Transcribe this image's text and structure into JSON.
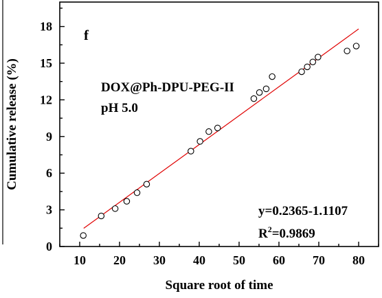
{
  "chart_data": {
    "type": "scatter",
    "panel_label": "f",
    "xlabel": "Square root of time",
    "ylabel": "Cumulative release (%)",
    "xlim": [
      5,
      85
    ],
    "ylim": [
      0,
      20
    ],
    "xticks": [
      10,
      20,
      30,
      40,
      50,
      60,
      70,
      80
    ],
    "yticks": [
      0,
      3,
      6,
      9,
      12,
      15,
      18
    ],
    "sample_label": "DOX@Ph-DPU-PEG-II",
    "condition_label": "pH 5.0",
    "equation": "y=0.2365-1.1107",
    "r_squared_prefix": "R",
    "r_squared_sup": "2",
    "r_squared_value": "=0.9869",
    "series": [
      {
        "marker": "open-circle",
        "x": [
          10.9,
          15.4,
          18.9,
          21.8,
          24.4,
          26.8,
          37.9,
          40.2,
          42.4,
          44.6,
          53.7,
          55.1,
          56.8,
          58.3,
          65.7,
          67.1,
          68.5,
          69.8,
          77.1,
          79.4
        ],
        "y": [
          0.9,
          2.5,
          3.1,
          3.7,
          4.4,
          5.1,
          7.8,
          8.6,
          9.4,
          9.7,
          12.1,
          12.6,
          12.9,
          13.9,
          14.3,
          14.7,
          15.1,
          15.5,
          16.0,
          16.4
        ]
      }
    ],
    "fit_line": {
      "color": "#e00000",
      "x": [
        11,
        80
      ],
      "y": [
        1.49,
        17.8
      ]
    },
    "grid": false,
    "legend": "none"
  }
}
